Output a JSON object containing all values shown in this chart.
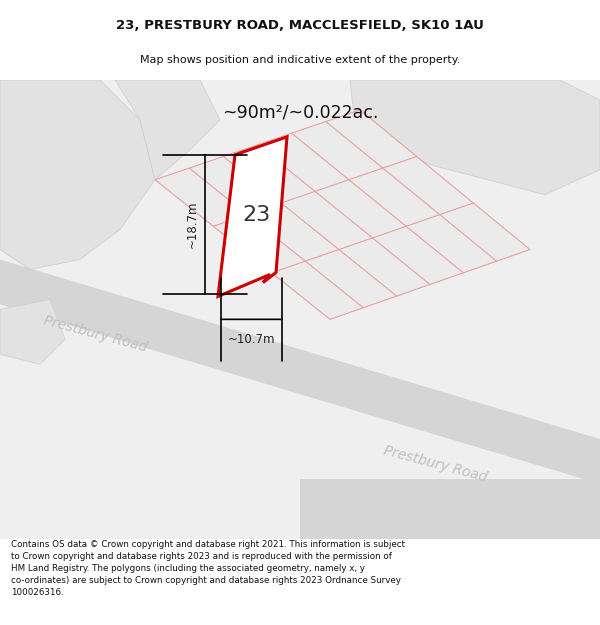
{
  "title": "23, PRESTBURY ROAD, MACCLESFIELD, SK10 1AU",
  "subtitle": "Map shows position and indicative extent of the property.",
  "footer": "Contains OS data © Crown copyright and database right 2021. This information is subject\nto Crown copyright and database rights 2023 and is reproduced with the permission of\nHM Land Registry. The polygons (including the associated geometry, namely x, y\nco-ordinates) are subject to Crown copyright and database rights 2023 Ordnance Survey\n100026316.",
  "area_label": "~90m²/~0.022ac.",
  "number_label": "23",
  "dim_height": "~18.7m",
  "dim_width": "~10.7m",
  "road_label1": "Prestbury Road",
  "road_label2": "Prestbury Road",
  "bg_color": "#f2f2f2",
  "map_bg": "#efefef",
  "block_color": "#e2e2e2",
  "road_color": "#d5d5d5",
  "plot_fill": "#ebebeb",
  "plot_line_color": "#e8a0a0",
  "highlight_color": "#cc0000",
  "title_color": "#111111",
  "footer_color": "#111111",
  "dim_color": "#222222",
  "road_label_color": "#c0c0c0",
  "number_color": "#333333"
}
